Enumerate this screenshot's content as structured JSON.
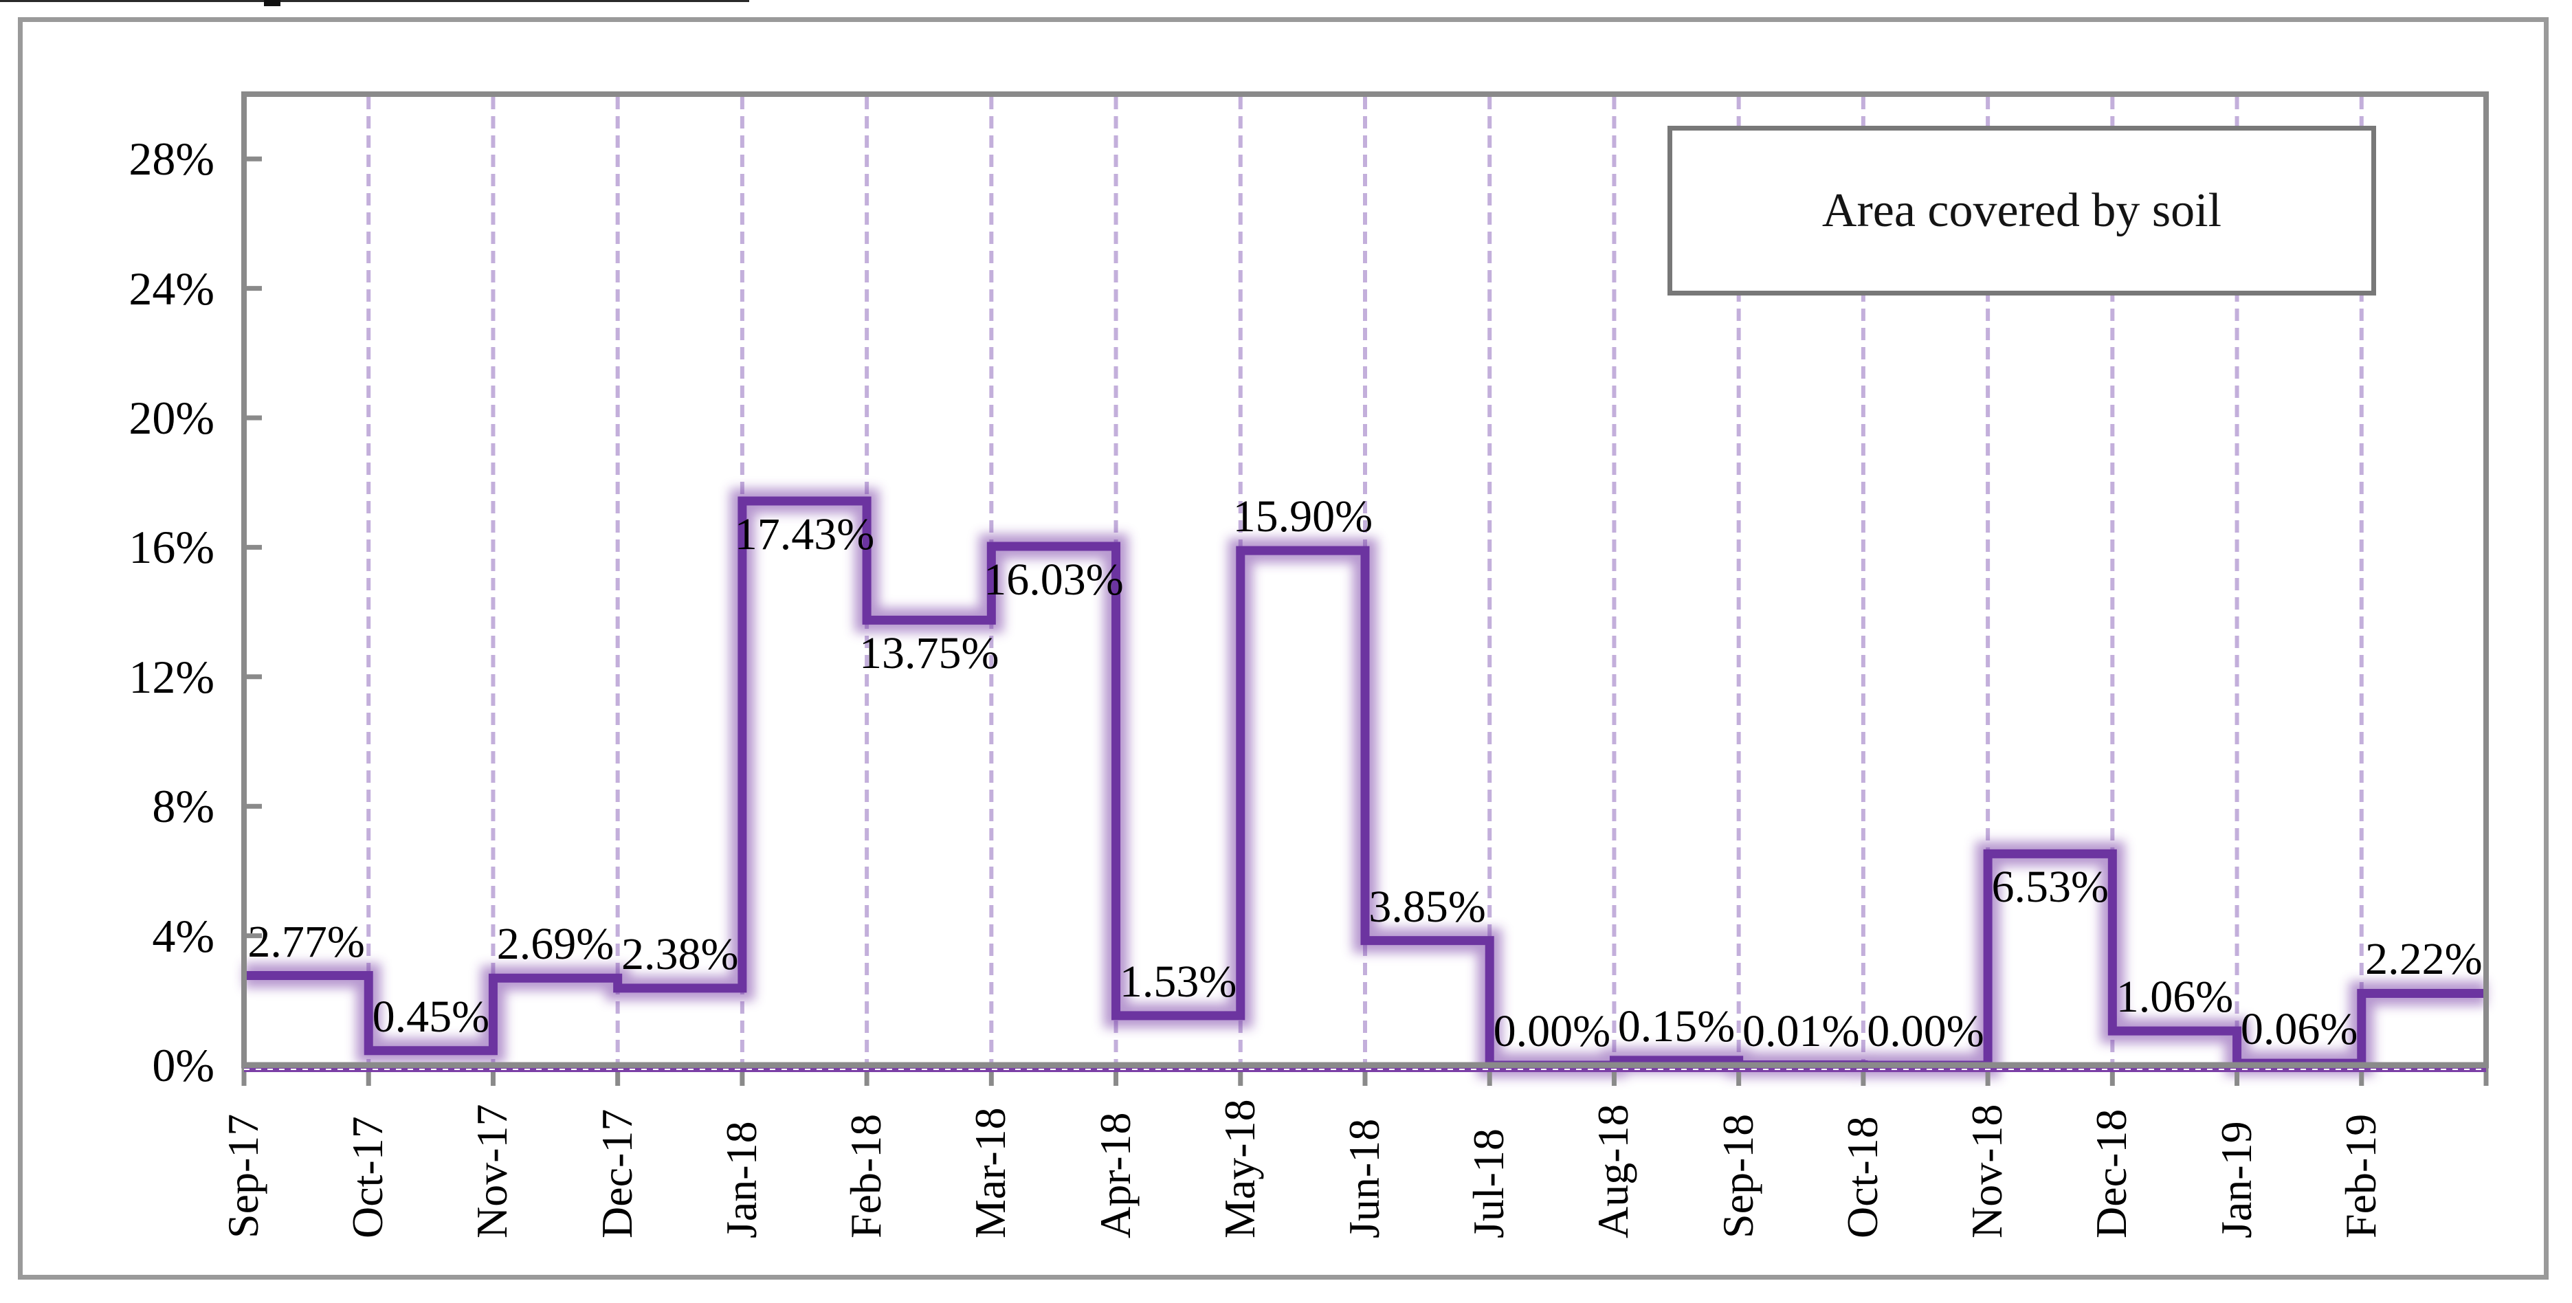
{
  "legend": {
    "label": "Area covered by soil"
  },
  "colors": {
    "line": "#6C34A0",
    "line_glow": "#7030A0",
    "gridline": "#C3AFDB",
    "axis_gray": "#8A8A8A",
    "tick_gray": "#8A8A8A",
    "frame_gray": "#9A9A9A",
    "legend_border_gray": "#787878",
    "under_axis_purple": "#7B3FA6",
    "text": "#000000"
  },
  "chart_data": {
    "type": "line",
    "subtype": "step-post",
    "title": "",
    "legend_entries": [
      "Area covered by soil"
    ],
    "legend_position": "top-right-inside-framed-box",
    "categories": [
      "Sep-17",
      "Oct-17",
      "Nov-17",
      "Dec-17",
      "Jan-18",
      "Feb-18",
      "Mar-18",
      "Apr-18",
      "May-18",
      "Jun-18",
      "Jul-18",
      "Aug-18",
      "Sep-18",
      "Oct-18",
      "Nov-18",
      "Dec-18",
      "Jan-19",
      "Feb-19"
    ],
    "series": [
      {
        "name": "Area covered by soil",
        "values": [
          2.77,
          0.45,
          2.69,
          2.38,
          17.43,
          13.75,
          16.03,
          1.53,
          15.9,
          3.85,
          0.0,
          0.15,
          0.01,
          0.0,
          6.53,
          1.06,
          0.06,
          2.22
        ]
      }
    ],
    "data_labels": [
      "2.77%",
      "0.45%",
      "2.69%",
      "2.38%",
      "17.43%",
      "13.75%",
      "16.03%",
      "1.53%",
      "15.90%",
      "3.85%",
      "0.00%",
      "0.15%",
      "0.01%",
      "0.00%",
      "6.53%",
      "1.06%",
      "0.06%",
      "2.22%"
    ],
    "data_label_placement": [
      "above",
      "above",
      "above",
      "above",
      "below",
      "below",
      "below",
      "above",
      "above",
      "above",
      "above",
      "above",
      "above",
      "above",
      "below",
      "above",
      "above",
      "above"
    ],
    "xlabel": "",
    "ylabel": "",
    "y_tick_labels": [
      "0%",
      "4%",
      "8%",
      "12%",
      "16%",
      "20%",
      "24%",
      "28%"
    ],
    "y_tick_values": [
      0,
      4,
      8,
      12,
      16,
      20,
      24,
      28
    ],
    "ylim": [
      0,
      30
    ],
    "x_axis_label_rotation_deg": 90,
    "grid": "vertical-dashed-at-category-boundaries"
  }
}
